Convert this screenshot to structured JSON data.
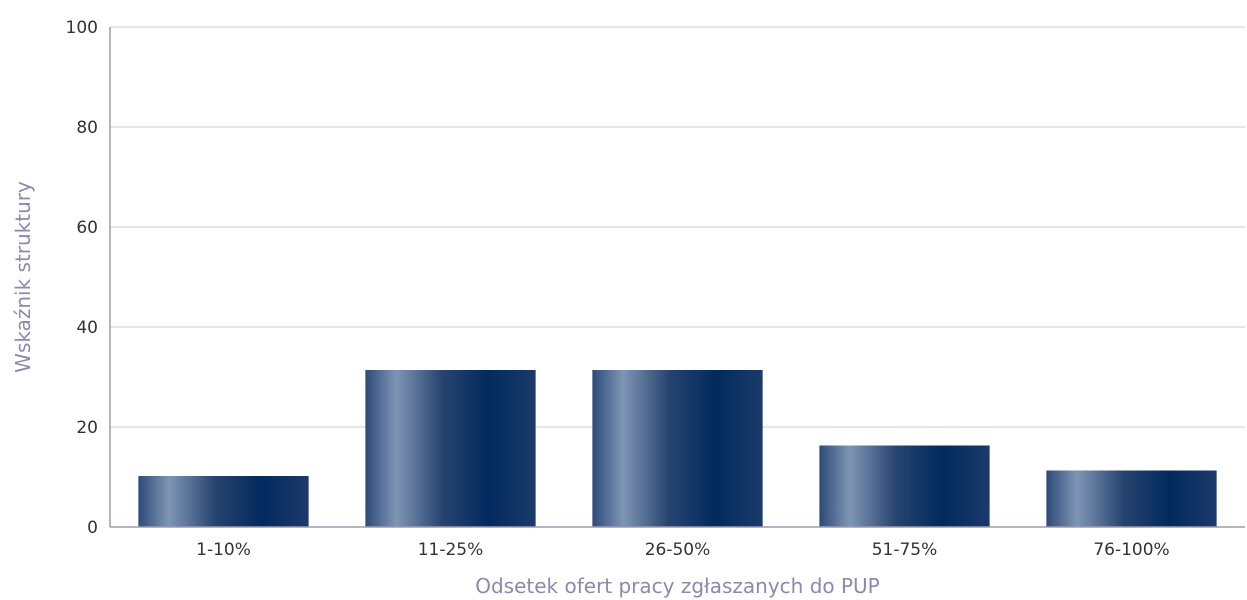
{
  "chart_data": {
    "type": "bar",
    "categories": [
      "1-10%",
      "11-25%",
      "26-50%",
      "51-75%",
      "76-100%"
    ],
    "values": [
      10.2,
      31.4,
      31.4,
      16.3,
      11.3
    ],
    "xlabel": "Odsetek ofert pracy zgłaszanych do PUP",
    "ylabel": "Wskaźnik struktury",
    "ylim": [
      0,
      100
    ],
    "yticks": [
      0,
      20,
      40,
      60,
      80,
      100
    ],
    "grid": true,
    "legend": "none",
    "colors": {
      "bar_dark": "#0a2a5e",
      "bar_light": "#7f95b5"
    }
  }
}
